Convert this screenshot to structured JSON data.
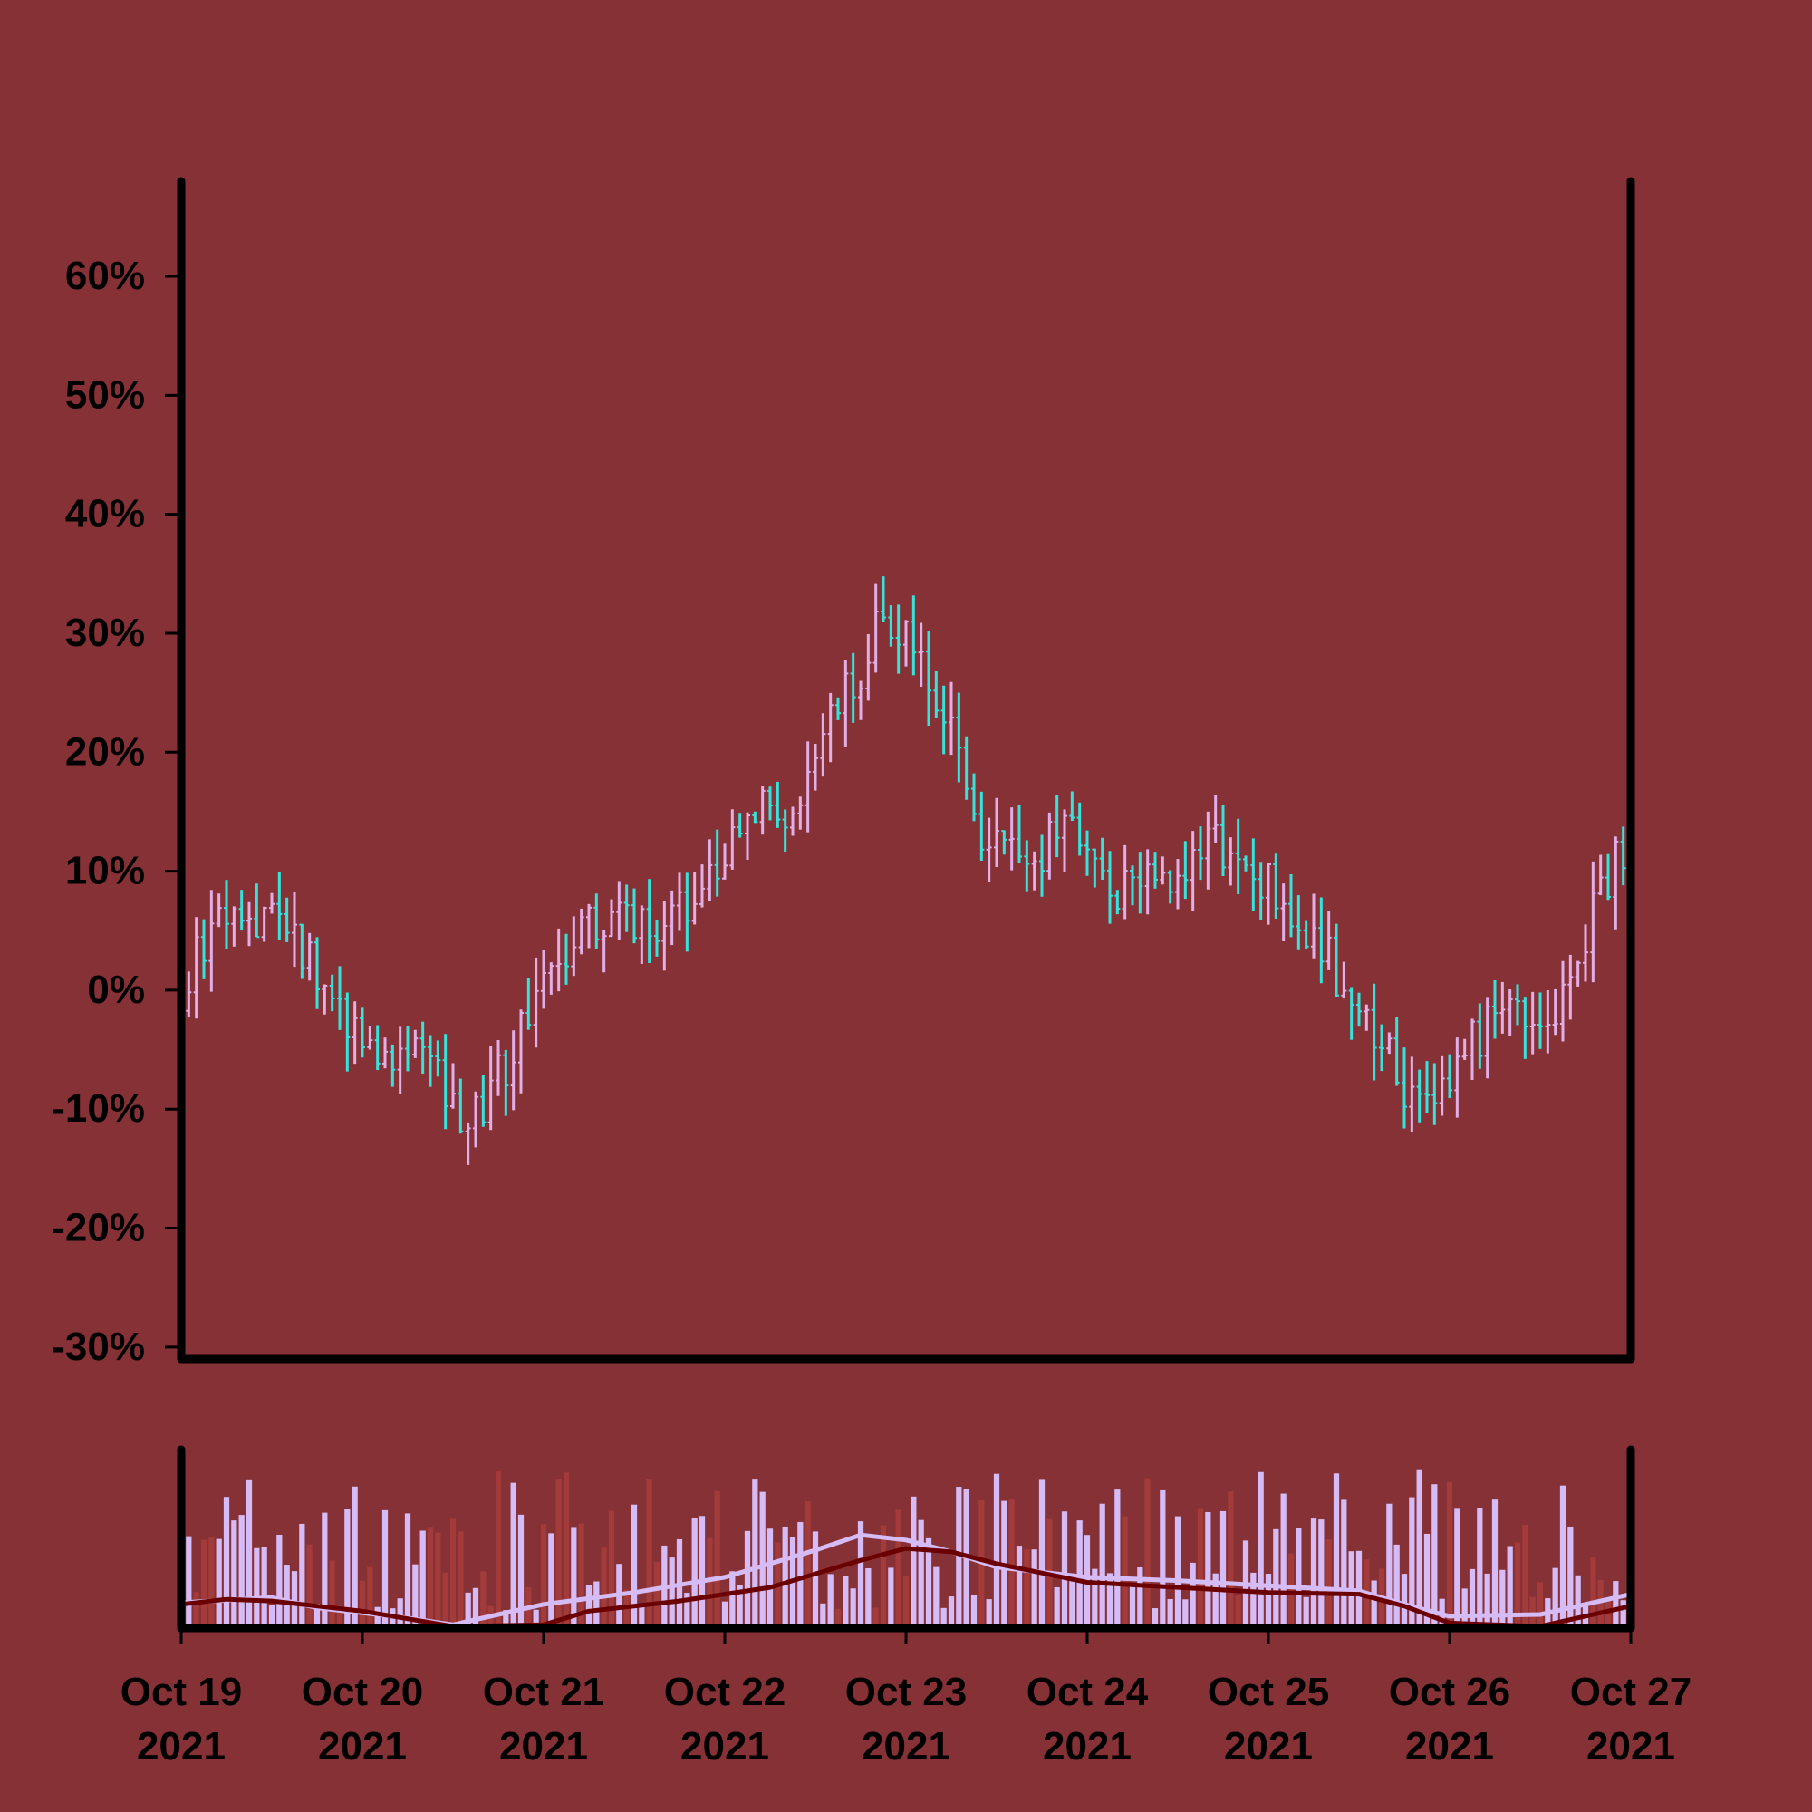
{
  "chart_data": [
    {
      "type": "ohlc",
      "panel": "price",
      "title": "",
      "xlabel": "",
      "ylabel": "",
      "y_unit": "%",
      "ylim": [
        -31,
        68
      ],
      "y_ticks": [
        -30,
        -20,
        -10,
        0,
        10,
        20,
        30,
        40,
        50,
        60
      ],
      "y_tick_labels": [
        "-30%",
        "-20%",
        "-10%",
        "0%",
        "10%",
        "20%",
        "30%",
        "40%",
        "50%",
        "60%"
      ],
      "x_range": [
        "2021-10-19 00:00",
        "2021-10-27 00:00"
      ],
      "bar_interval_hours": 1,
      "grid": false,
      "legend": "none",
      "colors": {
        "up": "#e2aee6",
        "down": "#36e3db",
        "background": "#853135",
        "axes": "#000000"
      },
      "trend_path": [
        [
          "2021-10-19 00:00",
          0
        ],
        [
          "2021-10-19 04:00",
          5
        ],
        [
          "2021-10-19 12:00",
          6
        ],
        [
          "2021-10-19 20:00",
          0
        ],
        [
          "2021-10-20 02:00",
          -6
        ],
        [
          "2021-10-20 08:00",
          -4
        ],
        [
          "2021-10-20 14:00",
          -12
        ],
        [
          "2021-10-20 20:00",
          -5
        ],
        [
          "2021-10-21 02:00",
          3
        ],
        [
          "2021-10-21 08:00",
          6
        ],
        [
          "2021-10-21 16:00",
          6
        ],
        [
          "2021-10-21 22:00",
          9
        ],
        [
          "2021-10-22 04:00",
          16
        ],
        [
          "2021-10-22 08:00",
          14
        ],
        [
          "2021-10-22 14:00",
          22
        ],
        [
          "2021-10-22 20:00",
          30
        ],
        [
          "2021-10-23 00:00",
          31
        ],
        [
          "2021-10-23 04:00",
          25
        ],
        [
          "2021-10-23 10:00",
          13
        ],
        [
          "2021-10-23 16:00",
          10
        ],
        [
          "2021-10-23 22:00",
          15
        ],
        [
          "2021-10-24 04:00",
          8
        ],
        [
          "2021-10-24 10:00",
          9
        ],
        [
          "2021-10-24 16:00",
          13
        ],
        [
          "2021-10-24 22:00",
          10
        ],
        [
          "2021-10-25 06:00",
          5
        ],
        [
          "2021-10-25 12:00",
          -2
        ],
        [
          "2021-10-25 20:00",
          -10
        ],
        [
          "2021-10-26 00:00",
          -7
        ],
        [
          "2021-10-26 06:00",
          -2
        ],
        [
          "2021-10-26 14:00",
          -1
        ],
        [
          "2021-10-26 20:00",
          8
        ],
        [
          "2021-10-27 00:00",
          13
        ]
      ],
      "end_value": 14,
      "candle_range_max": 6
    },
    {
      "type": "bar",
      "panel": "volume",
      "title": "",
      "ylabel": "",
      "x_range": [
        "2021-10-19 00:00",
        "2021-10-27 00:00"
      ],
      "x_tick_labels": [
        [
          "Oct 19",
          "2021"
        ],
        [
          "Oct 20",
          "2021"
        ],
        [
          "Oct 21",
          "2021"
        ],
        [
          "Oct 22",
          "2021"
        ],
        [
          "Oct 23",
          "2021"
        ],
        [
          "Oct 24",
          "2021"
        ],
        [
          "Oct 25",
          "2021"
        ],
        [
          "Oct 26",
          "2021"
        ],
        [
          "Oct 27",
          "2021"
        ]
      ],
      "colors": {
        "up": "#d5bcf7",
        "down": "#a33b3b",
        "ma_fast": "#d5bcf7",
        "ma_slow": "#6a0000"
      },
      "moving_averages": [
        {
          "style": "fast",
          "points": [
            [
              "2021-10-19 00:00",
              15
            ],
            [
              "2021-10-19 12:00",
              18
            ],
            [
              "2021-10-19 18:00",
              12
            ],
            [
              "2021-10-20 06:00",
              6
            ],
            [
              "2021-10-20 12:00",
              2
            ],
            [
              "2021-10-20 18:00",
              8
            ],
            [
              "2021-10-21 00:00",
              14
            ],
            [
              "2021-10-21 12:00",
              21
            ],
            [
              "2021-10-22 00:00",
              30
            ],
            [
              "2021-10-22 12:00",
              46
            ],
            [
              "2021-10-22 18:00",
              55
            ],
            [
              "2021-10-23 00:00",
              52
            ],
            [
              "2021-10-23 06:00",
              45
            ],
            [
              "2021-10-23 12:00",
              36
            ],
            [
              "2021-10-24 00:00",
              30
            ],
            [
              "2021-10-24 12:00",
              28
            ],
            [
              "2021-10-25 00:00",
              25
            ],
            [
              "2021-10-25 12:00",
              22
            ],
            [
              "2021-10-25 18:00",
              14
            ],
            [
              "2021-10-26 00:00",
              7
            ],
            [
              "2021-10-26 12:00",
              8
            ],
            [
              "2021-10-27 00:00",
              20
            ]
          ]
        },
        {
          "style": "slow",
          "points": [
            [
              "2021-10-19 00:00",
              14
            ],
            [
              "2021-10-19 06:00",
              17
            ],
            [
              "2021-10-19 12:00",
              16
            ],
            [
              "2021-10-20 00:00",
              10
            ],
            [
              "2021-10-20 12:00",
              1
            ],
            [
              "2021-10-21 00:00",
              2
            ],
            [
              "2021-10-21 06:00",
              10
            ],
            [
              "2021-10-21 18:00",
              16
            ],
            [
              "2021-10-22 06:00",
              24
            ],
            [
              "2021-10-22 18:00",
              40
            ],
            [
              "2021-10-23 00:00",
              47
            ],
            [
              "2021-10-23 06:00",
              45
            ],
            [
              "2021-10-23 12:00",
              38
            ],
            [
              "2021-10-24 00:00",
              27
            ],
            [
              "2021-10-24 12:00",
              24
            ],
            [
              "2021-10-25 00:00",
              21
            ],
            [
              "2021-10-25 12:00",
              20
            ],
            [
              "2021-10-25 18:00",
              13
            ],
            [
              "2021-10-26 00:00",
              3
            ],
            [
              "2021-10-26 12:00",
              1
            ],
            [
              "2021-10-27 00:00",
              13
            ]
          ]
        }
      ],
      "volume_max": 100
    }
  ]
}
